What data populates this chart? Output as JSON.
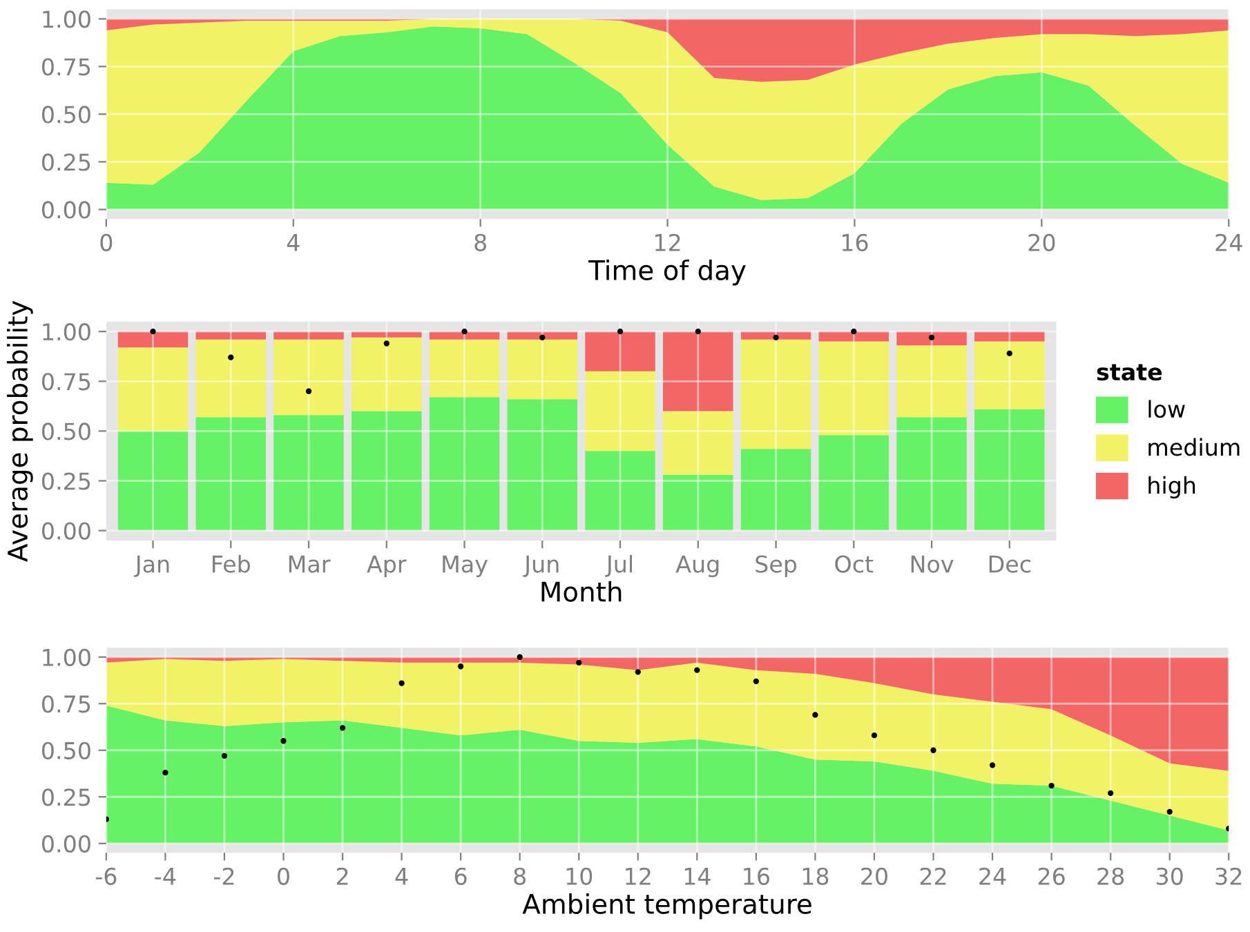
{
  "chart_data": [
    {
      "type": "area",
      "stacked": true,
      "xlabel": "Time of day",
      "x": [
        0,
        1,
        2,
        3,
        4,
        5,
        6,
        7,
        8,
        9,
        10,
        11,
        12,
        13,
        14,
        15,
        16,
        17,
        18,
        19,
        20,
        21,
        22,
        23,
        24
      ],
      "series": [
        {
          "color": "#66f266",
          "values": [
            0.14,
            0.13,
            0.3,
            0.57,
            0.83,
            0.91,
            0.93,
            0.96,
            0.95,
            0.92,
            0.77,
            0.61,
            0.34,
            0.12,
            0.05,
            0.06,
            0.19,
            0.45,
            0.63,
            0.7,
            0.72,
            0.65,
            0.44,
            0.24,
            0.14
          ]
        },
        {
          "color": "#f2f266",
          "values": [
            0.8,
            0.84,
            0.68,
            0.42,
            0.16,
            0.08,
            0.06,
            0.04,
            0.05,
            0.08,
            0.23,
            0.38,
            0.59,
            0.57,
            0.62,
            0.62,
            0.57,
            0.37,
            0.24,
            0.2,
            0.2,
            0.27,
            0.47,
            0.68,
            0.8
          ]
        },
        {
          "color": "#f26666",
          "values": [
            0.06,
            0.03,
            0.02,
            0.01,
            0.01,
            0.01,
            0.01,
            0,
            0,
            0,
            0,
            0.01,
            0.07,
            0.31,
            0.33,
            0.32,
            0.24,
            0.18,
            0.13,
            0.1,
            0.08,
            0.08,
            0.09,
            0.08,
            0.06
          ]
        }
      ],
      "xlim": [
        0,
        24
      ],
      "xticks": [
        0,
        4,
        8,
        12,
        16,
        20,
        24
      ],
      "ylim": [
        -0.05,
        1.05
      ],
      "yticks": [
        {
          "value": 0,
          "label": "0.00"
        },
        {
          "value": 0.25,
          "label": "0.25"
        },
        {
          "value": 0.5,
          "label": "0.50"
        },
        {
          "value": 0.75,
          "label": "0.75"
        },
        {
          "value": 1,
          "label": "1.00"
        }
      ],
      "grid": true
    },
    {
      "type": "bar",
      "stacked": true,
      "xlabel": "Month",
      "ylabel": "Average probability",
      "legend_title": "state",
      "legend": "right",
      "categories": [
        "Jan",
        "Feb",
        "Mar",
        "Apr",
        "May",
        "Jun",
        "Jul",
        "Aug",
        "Sep",
        "Oct",
        "Nov",
        "Dec"
      ],
      "series": [
        {
          "name": "low",
          "color": "#66f266",
          "values": [
            0.5,
            0.57,
            0.58,
            0.6,
            0.67,
            0.66,
            0.4,
            0.28,
            0.41,
            0.48,
            0.57,
            0.61
          ]
        },
        {
          "name": "medium",
          "color": "#f2f266",
          "values": [
            0.42,
            0.39,
            0.38,
            0.37,
            0.29,
            0.3,
            0.4,
            0.32,
            0.55,
            0.47,
            0.36,
            0.34
          ]
        },
        {
          "name": "high",
          "color": "#f26666",
          "values": [
            0.08,
            0.04,
            0.04,
            0.03,
            0.04,
            0.04,
            0.2,
            0.4,
            0.04,
            0.05,
            0.07,
            0.05
          ]
        },
        {
          "type": "scatter",
          "color": "#000000",
          "x": [
            "Jan",
            "Feb",
            "Mar",
            "Apr",
            "May",
            "Jun",
            "Jul",
            "Aug",
            "Sep",
            "Oct",
            "Nov",
            "Dec"
          ],
          "values": [
            1.0,
            0.87,
            0.7,
            0.94,
            1.0,
            0.97,
            1.0,
            1.0,
            0.97,
            1.0,
            0.97,
            0.89
          ]
        }
      ],
      "ylim": [
        -0.05,
        1.05
      ],
      "yticks": [
        {
          "value": 0,
          "label": "0.00"
        },
        {
          "value": 0.25,
          "label": "0.25"
        },
        {
          "value": 0.5,
          "label": "0.50"
        },
        {
          "value": 0.75,
          "label": "0.75"
        },
        {
          "value": 1,
          "label": "1.00"
        }
      ],
      "grid": true
    },
    {
      "type": "area",
      "stacked": true,
      "xlabel": "Ambient temperature",
      "x": [
        -6,
        -4,
        -2,
        0,
        2,
        4,
        6,
        8,
        10,
        12,
        14,
        16,
        18,
        20,
        22,
        24,
        26,
        28,
        30,
        32
      ],
      "series": [
        {
          "color": "#66f266",
          "values": [
            0.74,
            0.66,
            0.63,
            0.65,
            0.66,
            0.62,
            0.58,
            0.61,
            0.55,
            0.54,
            0.56,
            0.52,
            0.45,
            0.44,
            0.39,
            0.32,
            0.31,
            0.23,
            0.15,
            0.07
          ]
        },
        {
          "color": "#f2f266",
          "values": [
            0.23,
            0.33,
            0.35,
            0.34,
            0.32,
            0.35,
            0.39,
            0.36,
            0.41,
            0.39,
            0.41,
            0.41,
            0.46,
            0.42,
            0.41,
            0.44,
            0.41,
            0.35,
            0.28,
            0.32
          ]
        },
        {
          "color": "#f26666",
          "values": [
            0.03,
            0.01,
            0.02,
            0.01,
            0.02,
            0.03,
            0.03,
            0.03,
            0.04,
            0.07,
            0.03,
            0.07,
            0.09,
            0.14,
            0.2,
            0.24,
            0.28,
            0.42,
            0.57,
            0.61
          ]
        },
        {
          "type": "scatter",
          "color": "#000000",
          "values": [
            0.13,
            0.38,
            0.47,
            0.55,
            0.62,
            0.86,
            0.95,
            1.0,
            0.97,
            0.92,
            0.93,
            0.87,
            0.69,
            0.58,
            0.5,
            0.42,
            0.31,
            0.27,
            0.17,
            0.08
          ]
        }
      ],
      "xlim": [
        -6,
        32
      ],
      "xticks": [
        -6,
        -4,
        -2,
        0,
        2,
        4,
        6,
        8,
        10,
        12,
        14,
        16,
        18,
        20,
        22,
        24,
        26,
        28,
        30,
        32
      ],
      "ylim": [
        -0.05,
        1.05
      ],
      "yticks": [
        {
          "value": 0,
          "label": "0.00"
        },
        {
          "value": 0.25,
          "label": "0.25"
        },
        {
          "value": 0.5,
          "label": "0.50"
        },
        {
          "value": 0.75,
          "label": "0.75"
        },
        {
          "value": 1,
          "label": "1.00"
        }
      ],
      "grid": true
    }
  ]
}
